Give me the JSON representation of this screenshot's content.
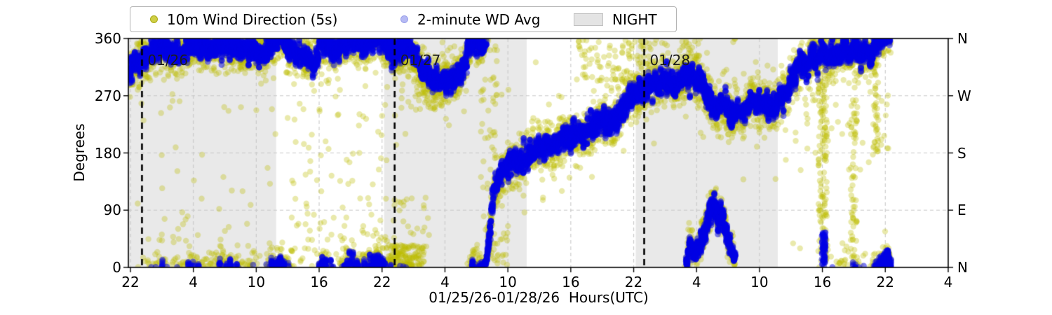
{
  "legend": {
    "entries": [
      {
        "label": "10m Wind Direction (5s)",
        "swatch": "yellow-dot"
      },
      {
        "label": "2-minute WD Avg",
        "swatch": "blue-dot"
      },
      {
        "label": "NIGHT",
        "swatch": "gray-patch"
      }
    ]
  },
  "chart_data": {
    "type": "scatter",
    "title": "",
    "xlabel": "01/25/26-01/28/26  Hours(UTC)",
    "ylabel": "Degrees",
    "ylim": [
      0,
      360
    ],
    "xlim_hours": [
      21.8,
      100.0
    ],
    "grid": {
      "on": true,
      "y_at": [
        90,
        180,
        270
      ]
    },
    "xticks": {
      "hours": [
        22,
        28,
        34,
        40,
        46,
        52,
        58,
        64,
        70,
        76,
        82,
        88,
        94,
        100
      ],
      "labels": [
        "22",
        "4",
        "10",
        "16",
        "22",
        "4",
        "10",
        "16",
        "22",
        "4",
        "10",
        "16",
        "22",
        "4"
      ]
    },
    "yticks": {
      "degrees": [
        0,
        90,
        180,
        270,
        360
      ],
      "labels": [
        "0",
        "90",
        "180",
        "270",
        "360"
      ],
      "compass": [
        "N",
        "E",
        "S",
        "W",
        "N"
      ]
    },
    "colors": {
      "night": "#e9e9e9",
      "grid": "#c8c8c8",
      "yellow": "#bdbd00",
      "blue": "#0000e6",
      "day_line": "#000000"
    },
    "night_bands_hours": [
      [
        21.8,
        35.9
      ],
      [
        46.2,
        59.8
      ],
      [
        70.2,
        83.75
      ]
    ],
    "day_lines": [
      {
        "hour": 23.1,
        "label": "01/26"
      },
      {
        "hour": 47.2,
        "label": "01/27"
      },
      {
        "hour": 71.0,
        "label": "01/28"
      }
    ],
    "series": [
      {
        "name": "10m Wind Direction (5s)",
        "color": "#bdbd00",
        "alpha": 0.33,
        "marker_px": 4.2,
        "step_hours": 0.013,
        "noise_sd_deg": 17,
        "outlier_frac": 0.07,
        "outlier_sd_deg": 48
      },
      {
        "name": "2-minute WD Avg",
        "color": "#0000e6",
        "alpha": 0.5,
        "marker_px": 4.4,
        "slot_hours": 0.0333,
        "draws_per_slot": 5,
        "noise_sd_deg": 8.5
      }
    ],
    "data_hours_range": [
      21.85,
      94.55
    ],
    "mean_path_deg": [
      [
        21.85,
        295
      ],
      [
        22.2,
        312
      ],
      [
        23,
        327
      ],
      [
        24,
        336
      ],
      [
        25.5,
        345
      ],
      [
        27,
        338
      ],
      [
        28.5,
        347
      ],
      [
        30,
        341
      ],
      [
        31.5,
        350
      ],
      [
        33,
        343
      ],
      [
        34.5,
        338
      ],
      [
        35.5,
        357
      ],
      [
        36.3,
        359
      ],
      [
        36.9,
        345
      ],
      [
        38,
        337
      ],
      [
        39,
        331
      ],
      [
        39.5,
        306
      ],
      [
        40.1,
        356
      ],
      [
        40.8,
        358
      ],
      [
        41.6,
        345
      ],
      [
        42.4,
        354
      ],
      [
        43.2,
        359
      ],
      [
        44,
        351
      ],
      [
        44.8,
        357
      ],
      [
        45.5,
        356
      ],
      [
        46.2,
        349
      ],
      [
        47.2,
        342
      ],
      [
        48.3,
        345
      ],
      [
        49.2,
        332
      ],
      [
        50,
        313
      ],
      [
        50.7,
        297
      ],
      [
        51.5,
        289
      ],
      [
        52.3,
        293
      ],
      [
        53.1,
        299
      ],
      [
        53.8,
        316
      ],
      [
        54.3,
        344
      ],
      [
        54.9,
        354
      ],
      [
        55.4,
        351
      ],
      [
        55.9,
        366
      ],
      [
        56.15,
        400
      ],
      [
        56.45,
        455
      ],
      [
        56.7,
        482
      ],
      [
        57.9,
        518
      ],
      [
        59.4,
        528
      ],
      [
        60.9,
        542
      ],
      [
        62.4,
        556
      ],
      [
        63.9,
        568
      ],
      [
        65.2,
        576
      ],
      [
        66.4,
        582
      ],
      [
        67.5,
        588
      ],
      [
        68.4,
        596
      ],
      [
        69.3,
        615
      ],
      [
        70.1,
        632
      ],
      [
        71,
        647
      ],
      [
        71.8,
        652
      ],
      [
        72.5,
        648
      ],
      [
        73.2,
        656
      ],
      [
        74,
        650
      ],
      [
        74.8,
        656
      ],
      [
        75.6,
        652
      ],
      [
        76.4,
        648
      ],
      [
        77.2,
        627
      ],
      [
        77.9,
        607
      ],
      [
        78.6,
        618
      ],
      [
        79.2,
        603
      ],
      [
        79.9,
        614
      ],
      [
        80.6,
        607
      ],
      [
        81.3,
        621
      ],
      [
        82,
        611
      ],
      [
        82.7,
        619
      ],
      [
        83.4,
        613
      ],
      [
        84,
        622
      ],
      [
        84.6,
        633
      ],
      [
        85.1,
        657
      ],
      [
        85.6,
        676
      ],
      [
        86.1,
        692
      ],
      [
        86.6,
        677
      ],
      [
        87.1,
        696
      ],
      [
        87.6,
        682
      ],
      [
        88.1,
        700
      ],
      [
        88.6,
        689
      ],
      [
        89.1,
        703
      ],
      [
        89.6,
        691
      ],
      [
        90.1,
        701
      ],
      [
        90.6,
        687
      ],
      [
        91.1,
        704
      ],
      [
        91.6,
        693
      ],
      [
        92.1,
        707
      ],
      [
        92.6,
        692
      ],
      [
        93.1,
        709
      ],
      [
        93.6,
        719
      ],
      [
        94.0,
        726
      ],
      [
        94.55,
        735
      ]
    ],
    "extra_paths": [
      {
        "series": 1,
        "sd": 8,
        "points": [
          [
            75.0,
            6
          ],
          [
            75.4,
            38
          ],
          [
            75.8,
            22
          ],
          [
            76.3,
            34
          ],
          [
            76.8,
            58
          ],
          [
            77.3,
            88
          ],
          [
            77.7,
            104
          ],
          [
            78.1,
            70
          ],
          [
            78.5,
            86
          ],
          [
            78.9,
            48
          ],
          [
            79.3,
            26
          ],
          [
            79.7,
            10
          ]
        ]
      },
      {
        "series": 0,
        "sd": 14,
        "points": [
          [
            75.0,
            6
          ],
          [
            75.4,
            38
          ],
          [
            75.8,
            22
          ],
          [
            76.3,
            34
          ],
          [
            76.8,
            58
          ],
          [
            77.3,
            88
          ],
          [
            77.7,
            104
          ],
          [
            78.1,
            70
          ],
          [
            78.5,
            86
          ],
          [
            78.9,
            48
          ],
          [
            79.3,
            26
          ],
          [
            79.7,
            10
          ]
        ]
      }
    ],
    "clusters": [
      {
        "series": 0,
        "h": [
          22.0,
          49.0
        ],
        "deg": [
          30,
          260
        ],
        "n": 60
      },
      {
        "series": 0,
        "h": [
          37.5,
          46.2
        ],
        "deg": [
          40,
          250
        ],
        "n": 45
      },
      {
        "series": 0,
        "h": [
          46.6,
          50.0
        ],
        "deg": [
          0,
          35
        ],
        "n": 130
      },
      {
        "series": 0,
        "h": [
          47.0,
          50.5
        ],
        "deg": [
          30,
          110
        ],
        "n": 25
      },
      {
        "series": 0,
        "h": [
          49.0,
          52.5
        ],
        "deg": [
          248,
          318
        ],
        "n": 70
      },
      {
        "series": 0,
        "h": [
          55.3,
          57.0
        ],
        "deg": [
          120,
          360
        ],
        "n": 45
      },
      {
        "series": 0,
        "h": [
          56.0,
          58.0
        ],
        "deg": [
          0,
          60
        ],
        "n": 25
      },
      {
        "series": 0,
        "h": [
          64.5,
          71.5
        ],
        "deg": [
          295,
          360
        ],
        "n": 90
      },
      {
        "series": 0,
        "h": [
          71.5,
          76.5
        ],
        "deg": [
          300,
          360
        ],
        "n": 40
      },
      {
        "series": 0,
        "h": [
          87.6,
          88.45
        ],
        "deg": [
          0,
          360
        ],
        "n": 130
      },
      {
        "series": 1,
        "h": [
          87.95,
          88.3
        ],
        "deg": [
          0,
          55
        ],
        "n": 70
      },
      {
        "series": 0,
        "h": [
          90.7,
          91.3
        ],
        "deg": [
          0,
          265
        ],
        "n": 60
      },
      {
        "series": 0,
        "h": [
          92.8,
          93.35
        ],
        "deg": [
          175,
          335
        ],
        "n": 45
      },
      {
        "series": 0,
        "h": [
          84.0,
          94.5
        ],
        "deg": [
          150,
          285
        ],
        "n": 50
      }
    ]
  }
}
